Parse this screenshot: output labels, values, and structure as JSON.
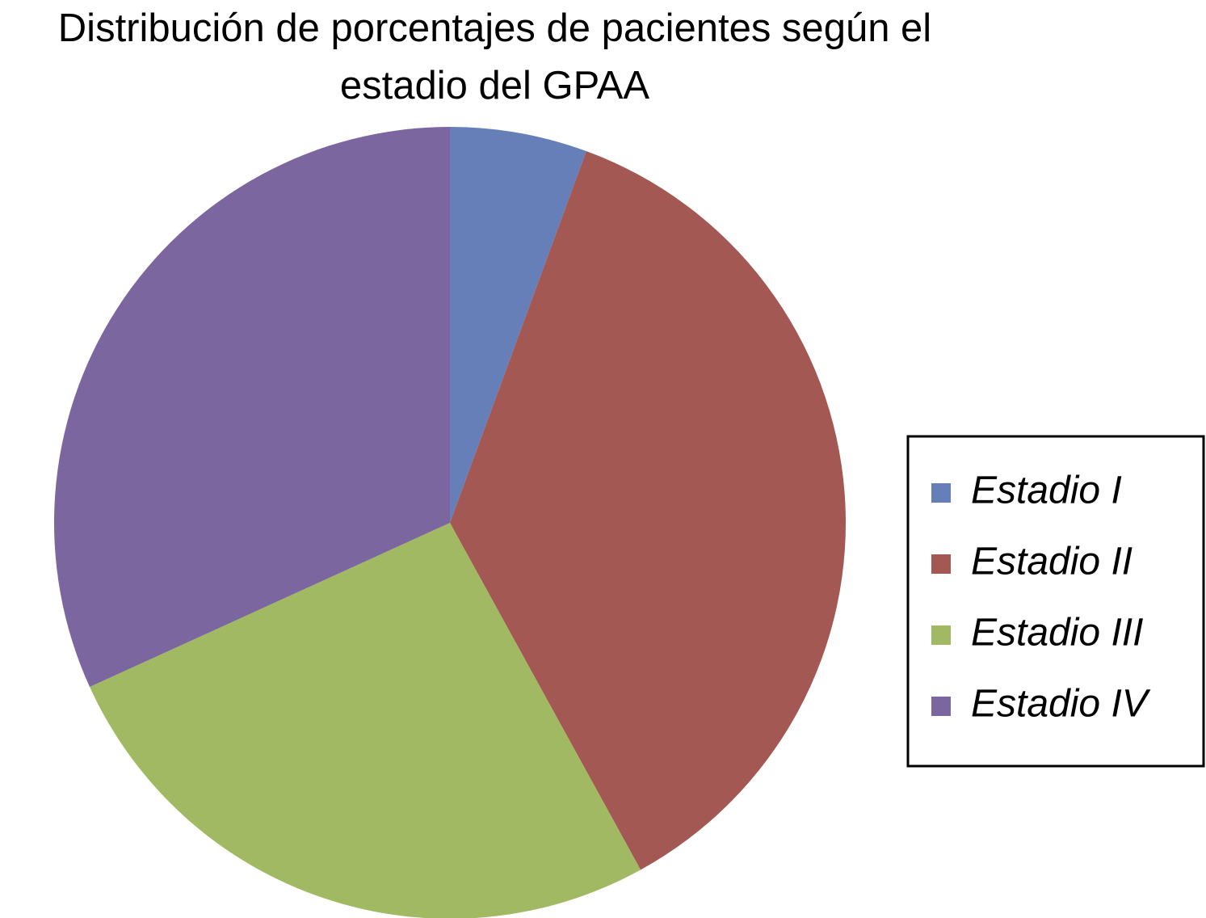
{
  "chart_data": {
    "type": "pie",
    "title": "Distribución de porcentajes de pacientes según el estadio del GPAA",
    "categories": [
      "Estadio I",
      "Estadio II",
      "Estadio III",
      "Estadio IV"
    ],
    "values": [
      5.6,
      36.4,
      26.2,
      31.8
    ],
    "colors": [
      "#667fb8",
      "#a35853",
      "#a1b962",
      "#7b66a0"
    ],
    "legend": "right"
  }
}
